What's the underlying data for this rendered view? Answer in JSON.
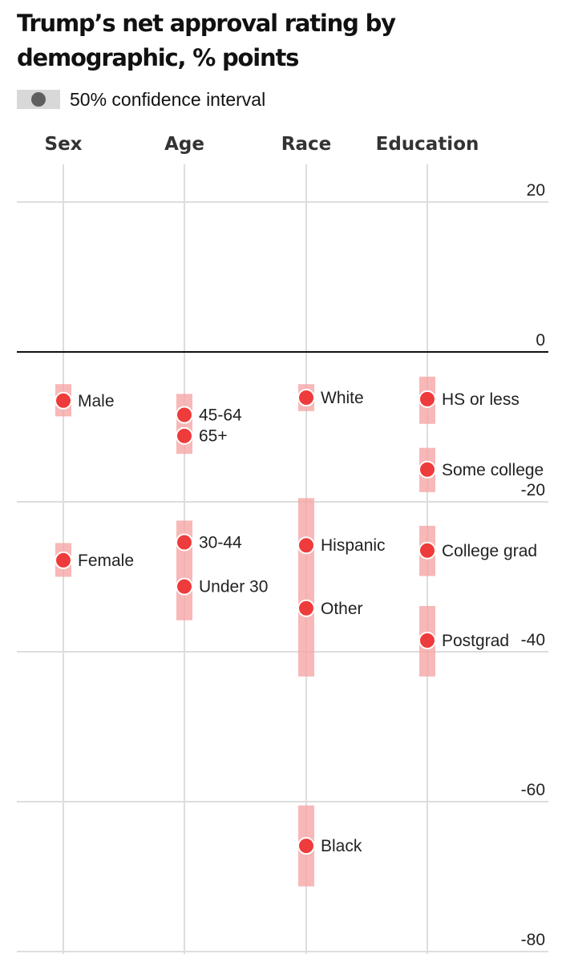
{
  "title": "Trump’s net approval rating by demographic, % points",
  "legend": {
    "label": "50% confidence interval",
    "dot_color": "#5f5f5f",
    "band_color": "#d8d8d8"
  },
  "colors": {
    "point": "#ee3b3b",
    "interval": "#f6a6a6",
    "zero_line": "#111111",
    "grid": "#dddddd"
  },
  "chart_data": {
    "type": "scatter",
    "title": "Trump’s net approval rating by demographic, % points",
    "ylabel": "% points",
    "ylim": [
      -80,
      20
    ],
    "yticks": [
      20,
      0,
      -20,
      -40,
      -60,
      -80
    ],
    "categories": [
      "Sex",
      "Age",
      "Race",
      "Education"
    ],
    "series": [
      {
        "name": "Sex",
        "points": [
          {
            "label": "Male",
            "value": -6.5,
            "ci": [
              -4.3,
              -8.6
            ]
          },
          {
            "label": "Female",
            "value": -27.8,
            "ci": [
              -25.5,
              -30.0
            ]
          }
        ]
      },
      {
        "name": "Age",
        "points": [
          {
            "label": "45-64",
            "value": -8.4,
            "ci": [
              -5.6,
              -13.6
            ]
          },
          {
            "label": "65+",
            "value": -11.2
          },
          {
            "label": "30-44",
            "value": -25.4,
            "ci": [
              -22.5,
              -35.8
            ]
          },
          {
            "label": "Under 30",
            "value": -31.3
          }
        ]
      },
      {
        "name": "Race",
        "points": [
          {
            "label": "White",
            "value": -6.1,
            "ci": [
              -4.3,
              -7.9
            ]
          },
          {
            "label": "Hispanic",
            "value": -25.8,
            "ci": [
              -19.5,
              -43.3
            ]
          },
          {
            "label": "Other",
            "value": -34.2
          },
          {
            "label": "Black",
            "value": -65.9,
            "ci": [
              -60.5,
              -71.3
            ]
          }
        ]
      },
      {
        "name": "Education",
        "points": [
          {
            "label": "HS or less",
            "value": -6.3,
            "ci": [
              -3.3,
              -9.6
            ]
          },
          {
            "label": "Some college",
            "value": -15.7,
            "ci": [
              -12.8,
              -18.7
            ]
          },
          {
            "label": "College grad",
            "value": -26.5,
            "ci": [
              -23.2,
              -29.9
            ]
          },
          {
            "label": "Postgrad",
            "value": -38.5,
            "ci": [
              -33.9,
              -43.3
            ]
          }
        ]
      }
    ]
  }
}
